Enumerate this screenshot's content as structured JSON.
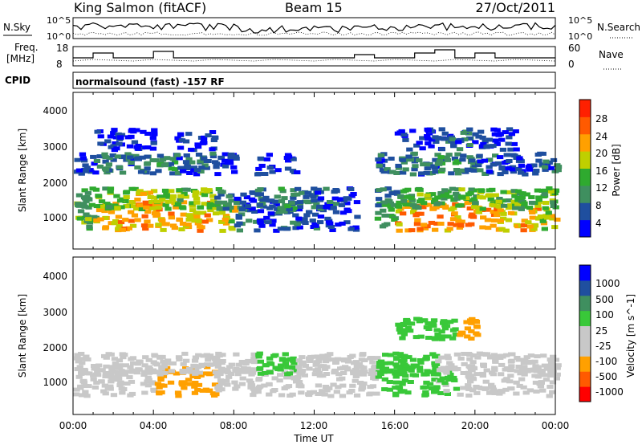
{
  "header": {
    "station": "King Salmon (fitACF)",
    "beam": "Beam 15",
    "date": "27/Oct/2011"
  },
  "nsky_panel": {
    "left_label": "N.Sky",
    "right_label": "N.Search",
    "left_ticks": [
      "10^5",
      "10^0"
    ],
    "right_ticks": [
      "10^5",
      "10^0"
    ]
  },
  "freq_panel": {
    "left_label": "Freq.",
    "left_unit": "[MHz]",
    "right_label": "Nave",
    "left_ticks": [
      "18",
      "8"
    ],
    "right_ticks": [
      "60",
      "0"
    ]
  },
  "cpid": {
    "label": "CPID",
    "value": "normalsound (fast) -157 RF"
  },
  "colors": {
    "power_bar": [
      "#0000ff",
      "#1f4f9f",
      "#3f8f5f",
      "#2faa2f",
      "#bfcf00",
      "#ffa000",
      "#ff5a00",
      "#ff2000"
    ],
    "velocity_bar": [
      "#ff0000",
      "#ff5a00",
      "#ffa000",
      "#c8c8c8",
      "#c8c8c8",
      "#39c839",
      "#3f8f5f",
      "#1f4f9f",
      "#0000ff"
    ]
  },
  "chart_data": [
    {
      "type": "heatmap",
      "name": "power",
      "xlabel": "",
      "ylabel": "Slant Range [km]",
      "y_ticks": [
        "1000",
        "2000",
        "3000",
        "4000"
      ],
      "colorbar_label": "Power [dB]",
      "colorbar_ticks": [
        "4",
        "8",
        "12",
        "16",
        "20",
        "24",
        "28"
      ],
      "rows": [
        {
          "range": 1000,
          "values": [
            14,
            20,
            22,
            24,
            22,
            20,
            22,
            18,
            8,
            4,
            8,
            6,
            4,
            2,
            0,
            12,
            22,
            24,
            22,
            24,
            22,
            20,
            22,
            18
          ]
        },
        {
          "range": 1500,
          "values": [
            12,
            14,
            16,
            18,
            16,
            14,
            16,
            10,
            2,
            8,
            10,
            8,
            6,
            2,
            0,
            8,
            12,
            14,
            12,
            14,
            16,
            14,
            12,
            14
          ]
        },
        {
          "range": 2500,
          "values": [
            4,
            8,
            6,
            8,
            10,
            6,
            8,
            4,
            0,
            2,
            2,
            0,
            0,
            0,
            0,
            6,
            8,
            6,
            10,
            8,
            6,
            4,
            4,
            6
          ]
        },
        {
          "range": 3200,
          "values": [
            0,
            2,
            2,
            2,
            0,
            2,
            2,
            0,
            0,
            0,
            0,
            0,
            0,
            0,
            0,
            0,
            2,
            4,
            6,
            6,
            4,
            2,
            0,
            0
          ]
        }
      ]
    },
    {
      "type": "heatmap",
      "name": "velocity",
      "xlabel": "Time UT",
      "ylabel": "Slant Range [km]",
      "x_ticks": [
        "00:00",
        "04:00",
        "08:00",
        "12:00",
        "16:00",
        "20:00",
        "00:00"
      ],
      "y_ticks": [
        "1000",
        "2000",
        "3000",
        "4000"
      ],
      "colorbar_label": "Velocity [m s^-1]",
      "colorbar_ticks": [
        "1000",
        "500",
        "100",
        "25",
        "-25",
        "-100",
        "-500",
        "-1000"
      ],
      "rows": [
        {
          "range": 1000,
          "values": [
            0,
            0,
            0,
            0,
            -150,
            -200,
            -100,
            0,
            0,
            0,
            0,
            0,
            0,
            0,
            0,
            100,
            150,
            120,
            80,
            0,
            0,
            0,
            0,
            0
          ]
        },
        {
          "range": 1500,
          "values": [
            0,
            0,
            0,
            0,
            0,
            0,
            0,
            0,
            0,
            120,
            100,
            0,
            0,
            0,
            0,
            150,
            200,
            100,
            0,
            0,
            0,
            0,
            0,
            0
          ]
        },
        {
          "range": 2500,
          "values": [
            0,
            0,
            0,
            0,
            0,
            0,
            0,
            0,
            0,
            0,
            0,
            0,
            0,
            0,
            0,
            0,
            100,
            200,
            100,
            -150,
            0,
            0,
            0,
            0
          ]
        }
      ]
    }
  ]
}
